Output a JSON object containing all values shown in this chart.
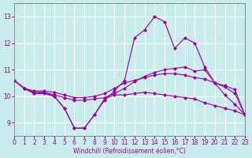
{
  "xlabel": "Windchill (Refroidissement éolien,°C)",
  "xlim": [
    0,
    23
  ],
  "ylim": [
    8.5,
    13.5
  ],
  "yticks": [
    9,
    10,
    11,
    12,
    13
  ],
  "xticks": [
    0,
    1,
    2,
    3,
    4,
    5,
    6,
    7,
    8,
    9,
    10,
    11,
    12,
    13,
    14,
    15,
    16,
    17,
    18,
    19,
    20,
    21,
    22,
    23
  ],
  "bg_color": "#c8ecec",
  "line_color": "#990099",
  "grid_color": "#ffffff",
  "s_peak": [
    10.6,
    10.3,
    10.1,
    10.15,
    10.0,
    9.55,
    8.8,
    8.8,
    9.3,
    9.85,
    10.2,
    10.6,
    12.2,
    12.5,
    13.0,
    12.8,
    11.8,
    12.2,
    12.0,
    11.1,
    10.5,
    10.05,
    9.7,
    9.3
  ],
  "s_med": [
    10.6,
    10.3,
    10.15,
    10.15,
    10.05,
    9.95,
    9.85,
    9.85,
    9.9,
    9.95,
    10.1,
    10.3,
    10.55,
    10.75,
    10.9,
    11.0,
    11.05,
    11.1,
    10.95,
    11.0,
    10.5,
    10.35,
    10.1,
    9.3
  ],
  "s_slow": [
    10.6,
    10.3,
    10.2,
    10.2,
    10.15,
    10.05,
    9.95,
    9.95,
    10.0,
    10.1,
    10.3,
    10.5,
    10.6,
    10.7,
    10.8,
    10.85,
    10.85,
    10.8,
    10.7,
    10.65,
    10.5,
    10.4,
    10.25,
    9.3
  ],
  "s_bot": [
    10.6,
    10.3,
    10.1,
    10.1,
    10.0,
    9.55,
    8.8,
    8.8,
    9.3,
    9.9,
    10.05,
    10.05,
    10.1,
    10.15,
    10.1,
    10.05,
    10.0,
    9.95,
    9.9,
    9.75,
    9.65,
    9.55,
    9.45,
    9.3
  ]
}
